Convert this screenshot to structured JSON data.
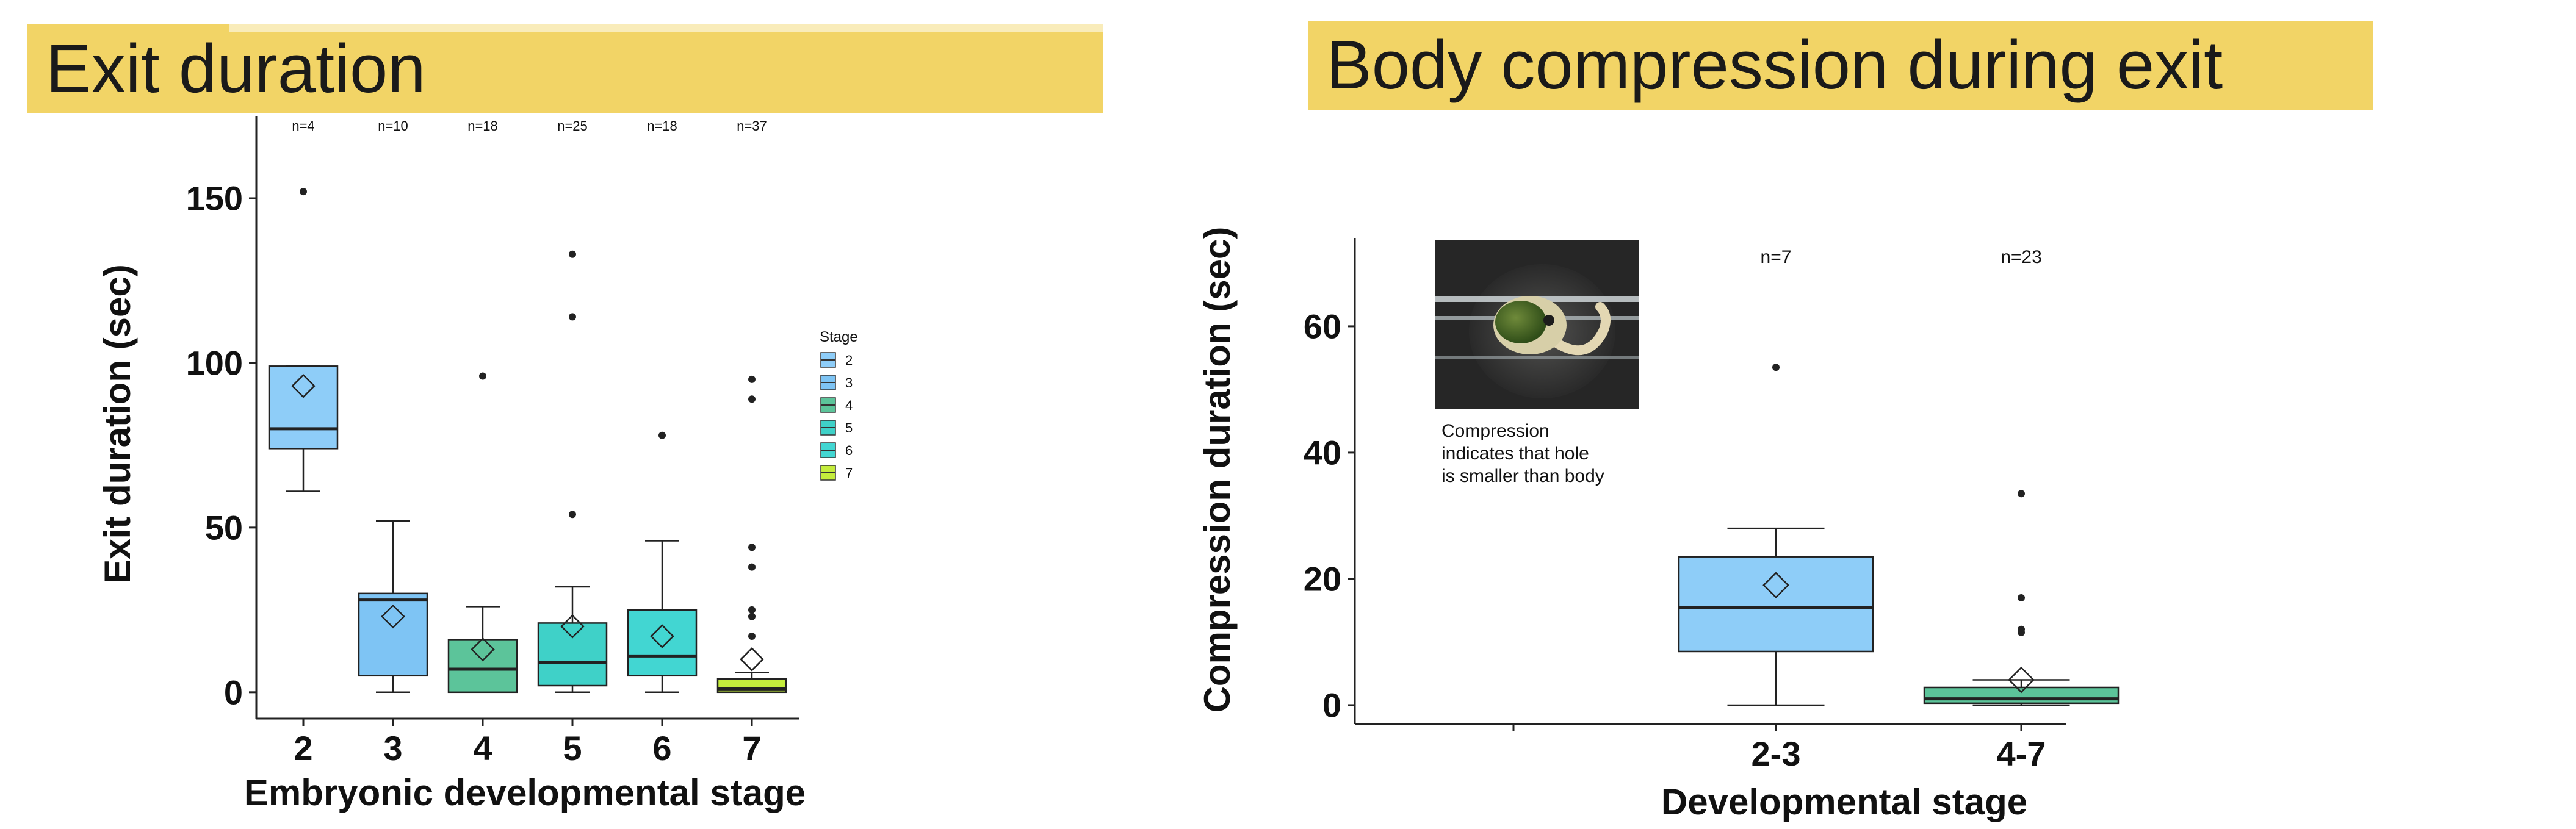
{
  "banners": {
    "left": "Exit duration",
    "right": "Body compression during exit"
  },
  "caption": {
    "line1": "Compression",
    "line2": "indicates that hole",
    "line3": "is smaller than body"
  },
  "colors": {
    "banner": "#f2d466",
    "stage2": "#8ecdf8",
    "stage3": "#7ec4f4",
    "stage4": "#5cc49a",
    "stage5": "#3fd1c8",
    "stage6": "#42d6d2",
    "stage7": "#c4ec3c"
  },
  "chart_data": [
    {
      "type": "box",
      "xlabel": "Embryonic developmental stage",
      "ylabel": "Exit duration (sec)",
      "ylim": [
        -8,
        175
      ],
      "yticks": [
        0,
        50,
        100,
        150
      ],
      "categories": [
        "2",
        "3",
        "4",
        "5",
        "6",
        "7"
      ],
      "n_labels": [
        "n=4",
        "n=10",
        "n=18",
        "n=25",
        "n=18",
        "n=37"
      ],
      "boxes": [
        {
          "min": 61,
          "q1": 74,
          "median": 80,
          "q3": 99,
          "max": 99,
          "mean": 93,
          "outliers": [
            152
          ],
          "color": "#8ecdf8"
        },
        {
          "min": 0,
          "q1": 5,
          "median": 28,
          "q3": 30,
          "max": 52,
          "mean": 23,
          "outliers": [],
          "color": "#7ec4f4"
        },
        {
          "min": 0,
          "q1": 0,
          "median": 7,
          "q3": 16,
          "max": 26,
          "mean": 13,
          "outliers": [
            96
          ],
          "color": "#5cc49a"
        },
        {
          "min": 0,
          "q1": 2,
          "median": 9,
          "q3": 21,
          "max": 32,
          "mean": 20,
          "outliers": [
            54,
            114,
            133
          ],
          "color": "#3fd1c8"
        },
        {
          "min": 0,
          "q1": 5,
          "median": 11,
          "q3": 25,
          "max": 46,
          "mean": 17,
          "outliers": [
            78
          ],
          "color": "#42d6d2"
        },
        {
          "min": 0,
          "q1": 0,
          "median": 1,
          "q3": 4,
          "max": 6,
          "mean": 10,
          "outliers": [
            17,
            23,
            25,
            38,
            44,
            89,
            95
          ],
          "color": "#c4ec3c"
        }
      ],
      "legend": {
        "title": "Stage",
        "entries": [
          "2",
          "3",
          "4",
          "5",
          "6",
          "7"
        ],
        "placement": "right"
      }
    },
    {
      "type": "box",
      "xlabel": "Developmental stage",
      "ylabel": "Compression duration (sec)",
      "ylim": [
        -3,
        74
      ],
      "yticks": [
        0,
        20,
        40,
        60
      ],
      "categories": [
        "2-3",
        "4-7"
      ],
      "n_labels": [
        "n=7",
        "n=23"
      ],
      "boxes": [
        {
          "min": 0,
          "q1": 8.5,
          "median": 15.5,
          "q3": 23.5,
          "max": 28,
          "mean": 19,
          "outliers": [
            53.5
          ],
          "color": "#8ecdf8"
        },
        {
          "min": 0,
          "q1": 0.3,
          "median": 1,
          "q3": 2.8,
          "max": 4,
          "mean": 4,
          "outliers": [
            11.5,
            12,
            17,
            33.5
          ],
          "color": "#5cc49a"
        }
      ]
    }
  ]
}
